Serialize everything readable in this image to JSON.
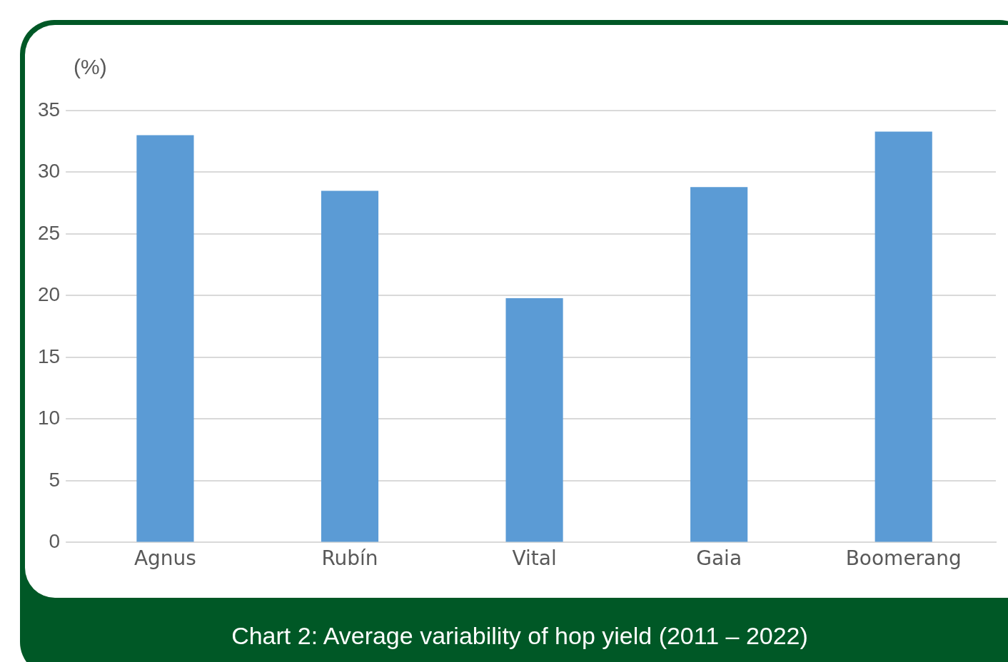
{
  "chart_data": {
    "type": "bar",
    "title": "Chart 2: Average variability of hop yield (2011 – 2022)",
    "ylabel": "(%)",
    "categories": [
      "Agnus",
      "Rubín",
      "Vital",
      "Gaia",
      "Boomerang"
    ],
    "values": [
      33.0,
      28.5,
      19.8,
      28.8,
      33.3
    ],
    "color": "#5b9bd5",
    "ylim": [
      0,
      35
    ],
    "yticks": [
      0,
      5,
      10,
      15,
      20,
      25,
      30,
      35
    ],
    "grid": "y",
    "legend": false
  }
}
